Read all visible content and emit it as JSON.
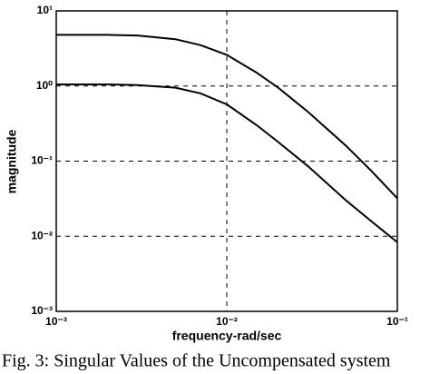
{
  "chart_data": {
    "type": "line",
    "xlabel": "frequency-rad/sec",
    "ylabel": "magnitude",
    "caption": "Fig. 3: Singular Values of the Uncompensated system",
    "xlog": true,
    "ylog": true,
    "grid": true,
    "x": [
      0.001,
      0.002,
      0.003,
      0.005,
      0.007,
      0.01,
      0.015,
      0.02,
      0.03,
      0.05,
      0.07,
      0.1
    ],
    "series": [
      {
        "color": "#000000",
        "values": [
          4.8,
          4.8,
          4.7,
          4.2,
          3.5,
          2.6,
          1.5,
          0.95,
          0.45,
          0.16,
          0.075,
          0.032
        ]
      },
      {
        "color": "#000000",
        "values": [
          1.05,
          1.05,
          1.03,
          0.95,
          0.8,
          0.57,
          0.3,
          0.18,
          0.085,
          0.03,
          0.016,
          0.0083
        ]
      }
    ],
    "xlim": [
      0.001,
      0.1
    ],
    "ylim": [
      0.001,
      10
    ],
    "xticks": [
      {
        "value": 0.001,
        "label": "10⁻³"
      },
      {
        "value": 0.01,
        "label": "10⁻²"
      },
      {
        "value": 0.1,
        "label": "10⁻¹"
      }
    ],
    "yticks": [
      {
        "value": 0.001,
        "label": "10⁻³"
      },
      {
        "value": 0.01,
        "label": "10⁻²"
      },
      {
        "value": 0.1,
        "label": "10⁻¹"
      },
      {
        "value": 1,
        "label": "10⁰"
      },
      {
        "value": 10,
        "label": "10¹"
      }
    ]
  }
}
